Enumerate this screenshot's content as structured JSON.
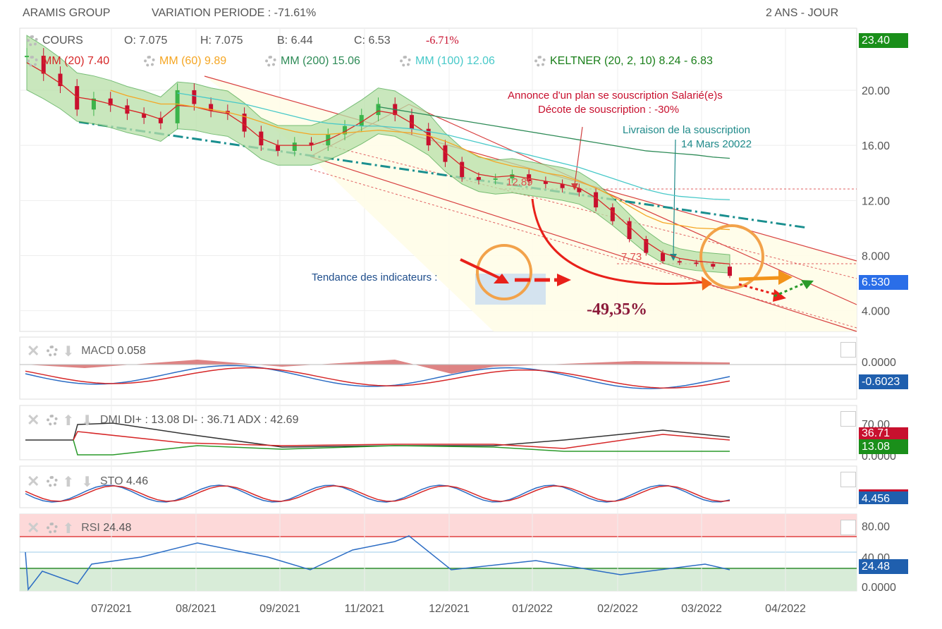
{
  "header": {
    "symbol": "ARAMIS GROUP",
    "variation": "VARIATION PERIODE : -71.61%",
    "period": "2 ANS - JOUR"
  },
  "legend": {
    "cours": "COURS",
    "open": "O: 7.075",
    "high": "H: 7.075",
    "low": "B: 6.44",
    "close": "C: 6.53",
    "change": "-6.71%",
    "mm20": "MM (20)",
    "mm20_val": "7.40",
    "mm60": "MM (60)",
    "mm60_val": "9.89",
    "mm200": "MM (200)",
    "mm200_val": "15.06",
    "mm100": "MM (100)",
    "mm100_val": "12.06",
    "keltner": "KELTNER (20, 2, 10)",
    "keltner_val": "8.24 - 6.83"
  },
  "colors": {
    "up": "#3cb44b",
    "down": "#c8102e",
    "mm20": "#d62728",
    "mm60": "#f5a623",
    "mm200": "#2e8b57",
    "mm100": "#48c9c9",
    "keltner": "#1a7f1a",
    "macd": "#2b6cc4",
    "signal": "#d62728"
  },
  "annotations": {
    "plan_line1": "Annonce d'un plan se souscription Salarié(e)s",
    "plan_line2": "Décote de souscription : -30%",
    "delivery_line1": "Livraison de la souscription",
    "delivery_line2": "14 Mars 20022",
    "level_1289": "12.89",
    "level_773": "7.73",
    "trend": "Tendance des indicateurs :",
    "drop": "-49,35%"
  },
  "price_tags": {
    "top": "23.40",
    "last": "6.530"
  },
  "macd": {
    "label": "MACD",
    "value": "0.058",
    "tag": "-0.6023",
    "axis": [
      "0.0000"
    ]
  },
  "dmi": {
    "label": "DMI",
    "diplus": "DI+ : 13.08",
    "diminus": "DI- : 36.71",
    "adx": "ADX : 42.69",
    "tag_minus": "36.71",
    "tag_plus": "13.08",
    "axis": [
      "70.00",
      "0.0000"
    ]
  },
  "sto": {
    "label": "STO",
    "value": "4.46",
    "tag": "4.456"
  },
  "rsi": {
    "label": "RSI",
    "value": "24.48",
    "tag": "24.48",
    "axis": [
      "80.00",
      "40.00",
      "0.0000"
    ]
  },
  "chart_data": {
    "type": "line",
    "title": "ARAMIS GROUP",
    "x_ticks": [
      "07/2021",
      "08/2021",
      "09/2021",
      "11/2021",
      "12/2021",
      "01/2022",
      "02/2022",
      "03/2022",
      "04/2022"
    ],
    "y_ticks": [
      "20.00",
      "16.00",
      "12.00",
      "8.000",
      "4.000"
    ],
    "ylim": [
      2.5,
      24.5
    ],
    "series": [
      {
        "name": "COURS",
        "values": [
          22.5,
          21.2,
          20.3,
          18.6,
          19.4,
          18.9,
          18.3,
          18.0,
          17.6,
          20.0,
          19.0,
          18.5,
          18.3,
          17.0,
          16.0,
          15.6,
          16.2,
          16.0,
          16.8,
          17.4,
          18.2,
          19.0,
          18.2,
          17.2,
          16.0,
          14.8,
          13.7,
          13.5,
          13.6,
          13.9,
          13.4,
          13.2,
          12.9,
          12.6,
          11.5,
          10.5,
          9.2,
          8.2,
          7.6,
          7.5,
          7.4,
          7.2,
          6.53
        ]
      },
      {
        "name": "MM (20)",
        "values": [
          22.0,
          21.3,
          20.5,
          19.5,
          19.3,
          19.0,
          18.6,
          18.3,
          17.9,
          18.9,
          18.8,
          18.5,
          18.3,
          17.5,
          16.5,
          16.0,
          16.0,
          16.0,
          16.4,
          17.0,
          17.7,
          18.5,
          18.3,
          17.6,
          16.8,
          15.5,
          14.5,
          13.9,
          13.7,
          13.8,
          13.6,
          13.4,
          13.2,
          12.9,
          12.2,
          11.2,
          10.1,
          9.0,
          8.2,
          7.8,
          7.6,
          7.5,
          7.4
        ]
      },
      {
        "name": "MM (60)",
        "values": [
          null,
          null,
          null,
          null,
          null,
          20.0,
          19.6,
          19.3,
          19.0,
          19.0,
          18.8,
          18.6,
          18.4,
          18.1,
          17.7,
          17.3,
          17.0,
          16.8,
          16.8,
          16.9,
          17.0,
          17.1,
          17.0,
          16.9,
          16.7,
          16.3,
          15.8,
          15.2,
          14.8,
          14.5,
          14.3,
          14.0,
          13.8,
          13.4,
          12.9,
          12.3,
          11.6,
          10.9,
          10.4,
          10.2,
          10.0,
          9.95,
          9.89
        ]
      },
      {
        "name": "MM (100)",
        "values": [
          null,
          null,
          null,
          null,
          null,
          null,
          null,
          null,
          null,
          19.8,
          19.6,
          19.4,
          19.2,
          19.0,
          18.7,
          18.4,
          18.1,
          17.8,
          17.6,
          17.5,
          17.4,
          17.4,
          17.3,
          17.2,
          17.0,
          16.8,
          16.5,
          16.2,
          15.9,
          15.6,
          15.3,
          15.0,
          14.7,
          14.4,
          14.0,
          13.6,
          13.2,
          12.8,
          12.5,
          12.3,
          12.2,
          12.1,
          12.06
        ]
      },
      {
        "name": "MM (200)",
        "values": [
          null,
          null,
          null,
          null,
          null,
          null,
          null,
          null,
          null,
          null,
          null,
          null,
          null,
          null,
          null,
          null,
          null,
          null,
          null,
          null,
          null,
          18.8,
          18.6,
          18.4,
          18.2,
          18.0,
          17.8,
          17.6,
          17.4,
          17.2,
          17.0,
          16.8,
          16.6,
          16.4,
          16.2,
          16.0,
          15.8,
          15.6,
          15.5,
          15.4,
          15.3,
          15.15,
          15.06
        ]
      }
    ]
  }
}
